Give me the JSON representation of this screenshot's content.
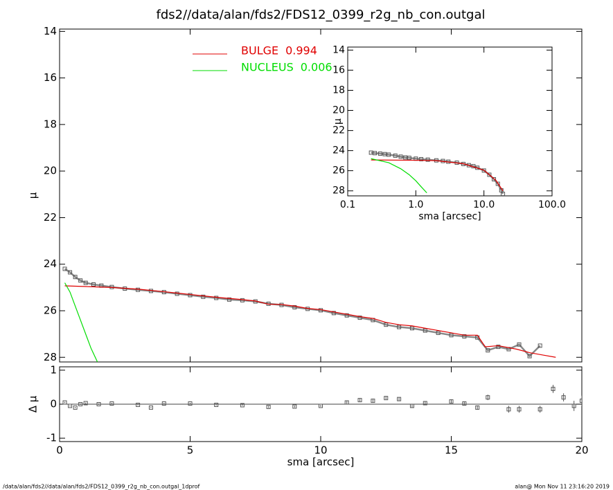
{
  "footer_left": "/data/alan/fds2//data/alan/fds2/FDS12_0399_r2g_nb_con.outgal_1dprof",
  "footer_right": "alan@  Mon Nov 11 23:16:20 2019",
  "chart_data": [
    {
      "type": "scatter",
      "title": "fds2//data/alan/fds2/FDS12_0399_r2g_nb_con.outgal",
      "ylabel": "μ",
      "xlim": [
        0,
        20
      ],
      "xticks": [
        0,
        5,
        10,
        15,
        20
      ],
      "show_xtick_labels": false,
      "ylim": [
        13.9,
        28.2
      ],
      "yticks": [
        14,
        16,
        18,
        20,
        22,
        24,
        26,
        28
      ],
      "y_inverted": true,
      "legend": "top",
      "series": [
        {
          "color": "#555555",
          "mode": "lines+markers",
          "x": [
            0.2,
            0.4,
            0.6,
            0.8,
            1.0,
            1.3,
            1.6,
            2.0,
            2.5,
            3.0,
            3.5,
            4.0,
            4.5,
            5.0,
            5.5,
            6.0,
            6.5,
            7.0,
            7.5,
            8.0,
            8.5,
            9.0,
            9.5,
            10.0,
            10.5,
            11.0,
            11.5,
            12.0,
            12.5,
            13.0,
            13.5,
            14.0,
            14.5,
            15.0,
            15.5,
            16.0,
            16.4,
            16.8,
            17.2,
            17.6,
            18.0,
            18.4
          ],
          "values": [
            24.2,
            24.35,
            24.55,
            24.7,
            24.8,
            24.87,
            24.92,
            24.98,
            25.05,
            25.1,
            25.15,
            25.2,
            25.27,
            25.33,
            25.4,
            25.45,
            25.52,
            25.55,
            25.6,
            25.7,
            25.75,
            25.85,
            25.92,
            25.98,
            26.1,
            26.2,
            26.3,
            26.4,
            26.6,
            26.7,
            26.75,
            26.85,
            26.95,
            27.05,
            27.1,
            27.15,
            27.7,
            27.55,
            27.65,
            27.45,
            27.95,
            27.5
          ]
        },
        {
          "name": "BULGE",
          "fraction": 0.994,
          "color": "#e00000",
          "mode": "lines",
          "x": [
            0.2,
            1,
            2,
            3,
            4,
            5,
            6,
            7,
            7.5,
            8,
            8.5,
            9,
            9.5,
            10,
            10.5,
            11,
            11.5,
            12,
            12.5,
            13,
            13.5,
            14,
            14.5,
            15,
            15.5,
            16,
            16.3,
            16.8,
            17.5,
            18,
            18.5,
            19
          ],
          "values": [
            24.93,
            24.96,
            25.0,
            25.07,
            25.18,
            25.3,
            25.42,
            25.52,
            25.58,
            25.72,
            25.73,
            25.8,
            25.9,
            25.95,
            26.05,
            26.15,
            26.25,
            26.33,
            26.5,
            26.6,
            26.65,
            26.75,
            26.85,
            26.95,
            27.05,
            27.05,
            27.55,
            27.5,
            27.65,
            27.8,
            27.9,
            28.0
          ]
        },
        {
          "name": "NUCLEUS",
          "fraction": 0.006,
          "color": "#00dd00",
          "mode": "lines",
          "x": [
            0.2,
            0.4,
            0.6,
            0.8,
            1.0,
            1.2,
            1.45
          ],
          "values": [
            24.8,
            25.2,
            25.8,
            26.4,
            27.0,
            27.6,
            28.2
          ]
        }
      ]
    },
    {
      "type": "scatter",
      "xlabel": "sma [arcsec]",
      "ylabel": "Δ μ",
      "xlim": [
        0,
        20
      ],
      "xticks": [
        0,
        5,
        10,
        15,
        20
      ],
      "show_xtick_labels": true,
      "ylim": [
        -1.1,
        1.1
      ],
      "yticks": [
        -1,
        0,
        1
      ],
      "zero_line": true,
      "series": [
        {
          "color": "#555555",
          "mode": "markers",
          "x": [
            0.2,
            0.4,
            0.6,
            0.8,
            1.0,
            1.5,
            2,
            3,
            3.5,
            4,
            5,
            6,
            7,
            8,
            9,
            10,
            11,
            11.5,
            12,
            12.5,
            13,
            13.5,
            14,
            15,
            15.5,
            16,
            16.4,
            17.2,
            17.6,
            18.4,
            18.9,
            19.3,
            19.7,
            20.0
          ],
          "values": [
            0.05,
            -0.05,
            -0.1,
            0,
            0.03,
            0,
            0.02,
            -0.02,
            -0.1,
            0.02,
            0.02,
            -0.02,
            -0.03,
            -0.08,
            -0.07,
            -0.05,
            0.05,
            0.12,
            0.1,
            0.18,
            0.15,
            -0.05,
            0.03,
            0.08,
            0.02,
            -0.1,
            0.2,
            -0.15,
            -0.15,
            -0.15,
            0.45,
            0.2,
            -0.05,
            0.1
          ],
          "errors": [
            0.02,
            0.02,
            0.02,
            0.02,
            0.02,
            0.02,
            0.02,
            0.02,
            0.02,
            0.02,
            0.02,
            0.02,
            0.02,
            0.03,
            0.03,
            0.03,
            0.04,
            0.04,
            0.04,
            0.04,
            0.05,
            0.05,
            0.05,
            0.06,
            0.06,
            0.06,
            0.08,
            0.1,
            0.1,
            0.1,
            0.12,
            0.12,
            0.15,
            0.15
          ]
        }
      ]
    },
    {
      "type": "scatter",
      "xlabel": "sma [arcsec]",
      "ylabel": "μ",
      "log_x": true,
      "xlim": [
        0.1,
        100
      ],
      "xticks": [
        0.1,
        {
          "value": 1,
          "label": "1.0"
        },
        {
          "value": 10,
          "label": "10.0"
        },
        {
          "value": 100,
          "label": "100.0"
        }
      ],
      "show_xtick_labels": true,
      "ylim": [
        13.7,
        28.5
      ],
      "yticks": [
        14,
        16,
        18,
        20,
        22,
        24,
        26,
        28
      ],
      "y_inverted": true,
      "series": [
        {
          "color": "#555555",
          "mode": "lines+markers",
          "x": [
            0.22,
            0.25,
            0.3,
            0.35,
            0.4,
            0.5,
            0.6,
            0.7,
            0.8,
            1,
            1.2,
            1.5,
            2,
            2.5,
            3,
            4,
            5,
            6,
            7,
            8,
            10,
            12,
            14,
            16,
            18,
            19
          ],
          "values": [
            24.2,
            24.25,
            24.3,
            24.35,
            24.4,
            24.5,
            24.6,
            24.68,
            24.72,
            24.8,
            24.85,
            24.9,
            24.97,
            25.03,
            25.1,
            25.2,
            25.33,
            25.45,
            25.55,
            25.7,
            25.98,
            26.4,
            26.85,
            27.3,
            27.95,
            28.3
          ]
        },
        {
          "color": "#e00000",
          "mode": "lines",
          "x": [
            0.22,
            1,
            2,
            5,
            10,
            15,
            19
          ],
          "values": [
            24.93,
            24.96,
            25.0,
            25.3,
            25.95,
            26.95,
            28.0
          ]
        },
        {
          "color": "#00dd00",
          "mode": "lines",
          "x": [
            0.22,
            0.4,
            0.6,
            0.8,
            1.0,
            1.2,
            1.45
          ],
          "values": [
            24.8,
            25.2,
            25.8,
            26.4,
            27.0,
            27.6,
            28.2
          ]
        }
      ]
    }
  ]
}
